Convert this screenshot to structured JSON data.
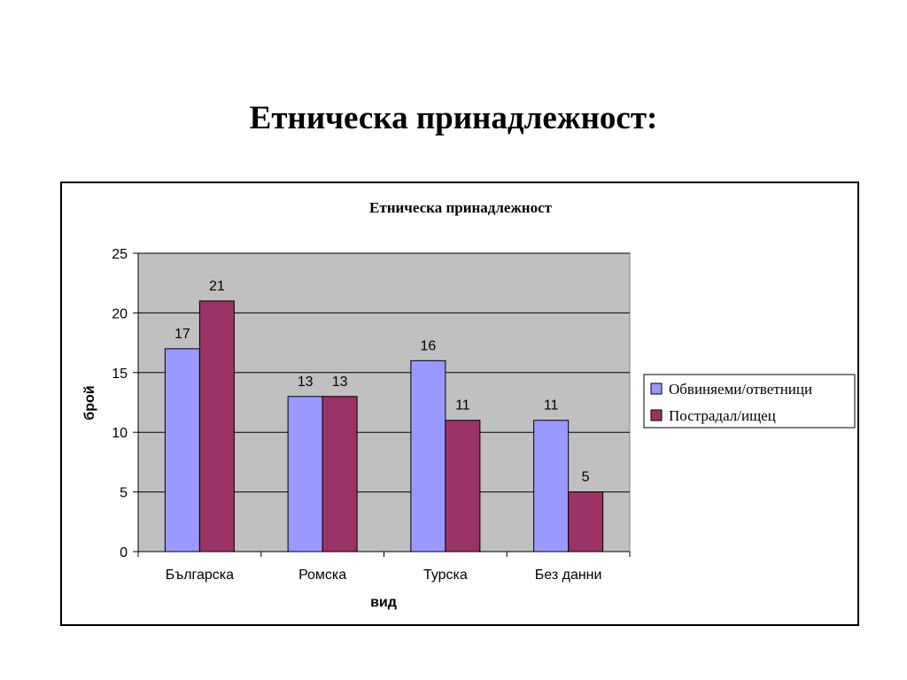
{
  "slide": {
    "title": "Етническа принадлежност:"
  },
  "chart_data": {
    "type": "bar",
    "title": "Етническа принадлежност",
    "xlabel": "вид",
    "ylabel": "брой",
    "ylim": [
      0,
      25
    ],
    "yticks": [
      0,
      5,
      10,
      15,
      20,
      25
    ],
    "grid": true,
    "legend_position": "right",
    "categories": [
      "Българска",
      "Ромска",
      "Турска",
      "Без данни"
    ],
    "series": [
      {
        "name": "Обвиняеми/ответници",
        "color": "#9999FF",
        "values": [
          17,
          13,
          16,
          11
        ]
      },
      {
        "name": "Пострадал/ищец",
        "color": "#993366",
        "values": [
          21,
          13,
          11,
          5
        ]
      }
    ],
    "plot_background": "#C0C0C0"
  }
}
